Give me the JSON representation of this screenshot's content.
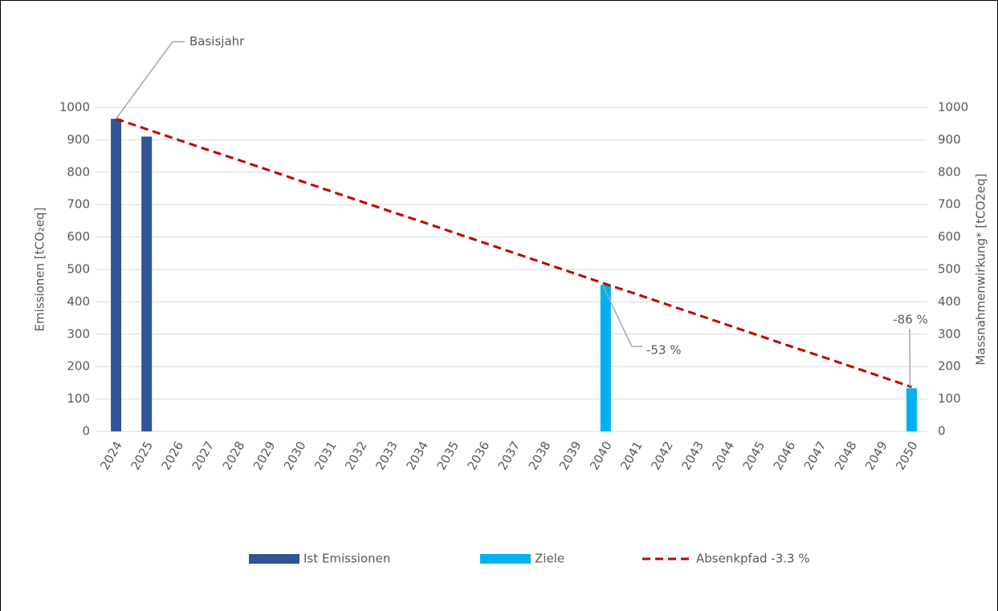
{
  "chart_data": {
    "type": "bar",
    "categories": [
      "2024",
      "2025",
      "2026",
      "2027",
      "2028",
      "2029",
      "2030",
      "2031",
      "2032",
      "2033",
      "2034",
      "2035",
      "2036",
      "2037",
      "2038",
      "2039",
      "2040",
      "2041",
      "2042",
      "2043",
      "2044",
      "2045",
      "2046",
      "2047",
      "2048",
      "2049",
      "2050"
    ],
    "series": [
      {
        "name": "Ist Emissionen",
        "color": "#2f5597",
        "type": "bar",
        "values": [
          965,
          910,
          null,
          null,
          null,
          null,
          null,
          null,
          null,
          null,
          null,
          null,
          null,
          null,
          null,
          null,
          null,
          null,
          null,
          null,
          null,
          null,
          null,
          null,
          null,
          null,
          null
        ]
      },
      {
        "name": "Ziele",
        "color": "#00b0f0",
        "type": "bar",
        "values": [
          null,
          null,
          null,
          null,
          null,
          null,
          null,
          null,
          null,
          null,
          null,
          null,
          null,
          null,
          null,
          null,
          452,
          null,
          null,
          null,
          null,
          null,
          null,
          null,
          null,
          null,
          133
        ]
      },
      {
        "name": "Absenkpfad -3.3 %",
        "color": "#c00000",
        "type": "line",
        "dashed": true,
        "values": [
          965,
          933,
          901,
          869,
          838,
          806,
          774,
          742,
          710,
          678,
          647,
          615,
          583,
          551,
          519,
          487,
          455,
          424,
          392,
          360,
          328,
          296,
          264,
          233,
          201,
          169,
          137
        ]
      }
    ],
    "ylabel": "Emissionen [tCO₂eq]",
    "y2label": "Massnahmenwirkung* [tCO2eq]",
    "ylim": [
      0,
      1000
    ],
    "yticks": [
      0,
      100,
      200,
      300,
      400,
      500,
      600,
      700,
      800,
      900,
      1000
    ],
    "y2lim": [
      0,
      1000
    ],
    "y2ticks": [
      0,
      100,
      200,
      300,
      400,
      500,
      600,
      700,
      800,
      900,
      1000
    ],
    "grid": true,
    "legend": "bottom",
    "annotations": [
      "Basisjahr",
      "-53 %",
      "-86 %"
    ]
  }
}
